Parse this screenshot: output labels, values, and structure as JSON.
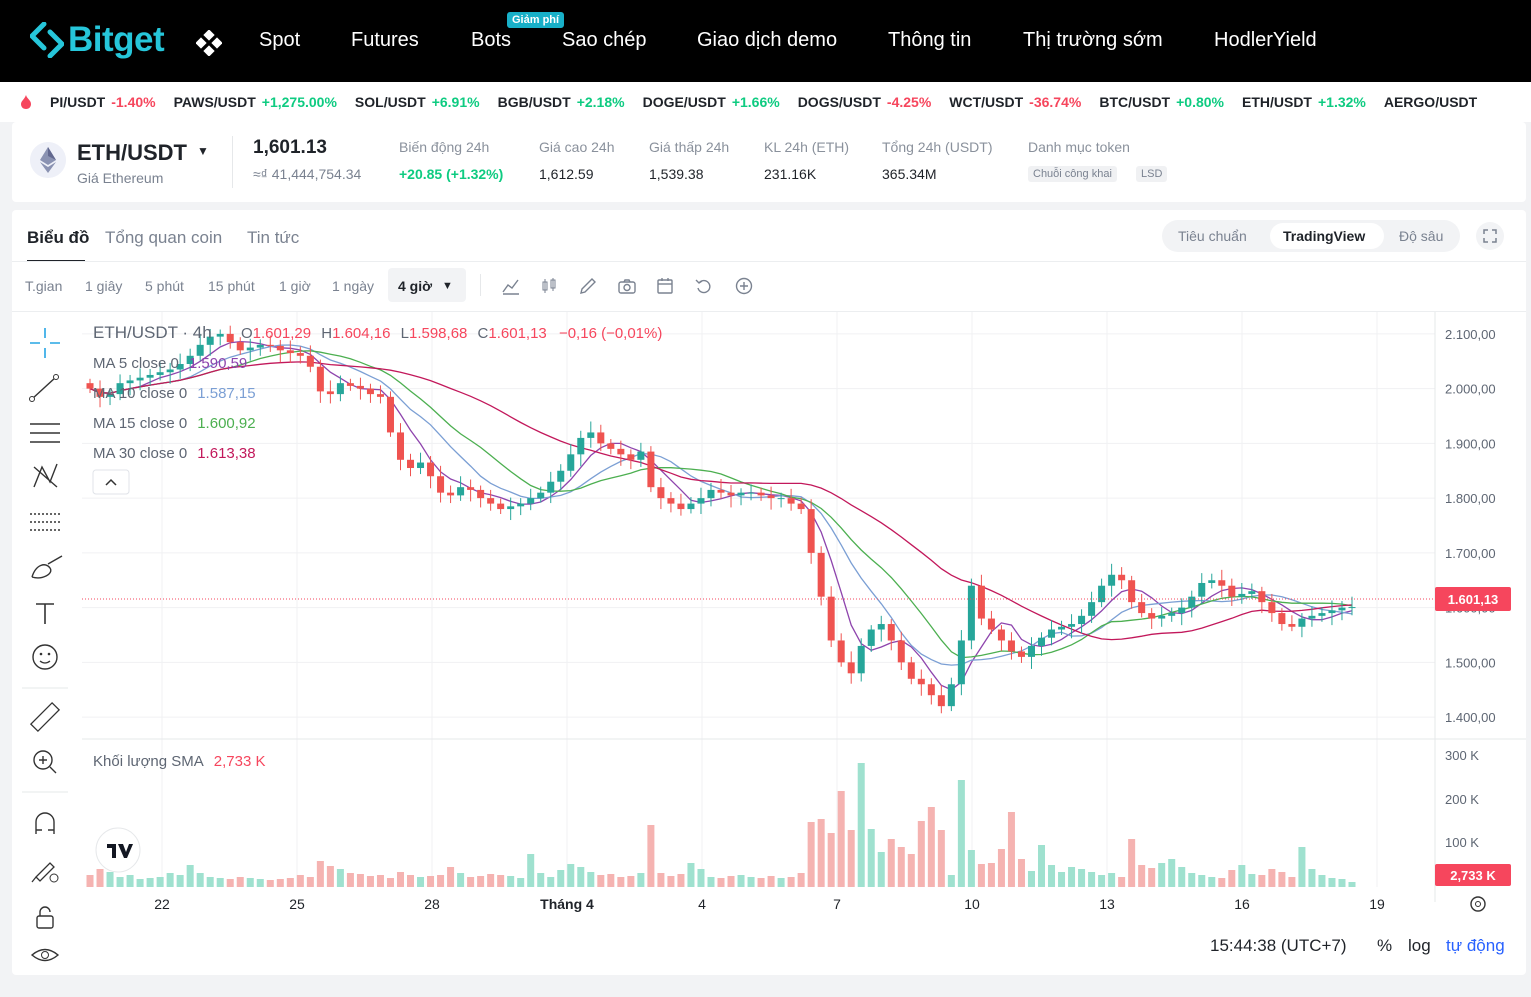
{
  "nav": {
    "brand": "Bitget",
    "items": [
      "Spot",
      "Futures",
      "Bots",
      "Sao chép",
      "Giao dịch demo",
      "Thông tin",
      "Thị trường sớm",
      "HodlerYield"
    ],
    "badge": "Giảm phí"
  },
  "ticker": [
    {
      "pair": "PI/USDT",
      "change": "-1.40%"
    },
    {
      "pair": "PAWS/USDT",
      "change": "+1,275.00%"
    },
    {
      "pair": "SOL/USDT",
      "change": "+6.91%"
    },
    {
      "pair": "BGB/USDT",
      "change": "+2.18%"
    },
    {
      "pair": "DOGE/USDT",
      "change": "+1.66%"
    },
    {
      "pair": "DOGS/USDT",
      "change": "-4.25%"
    },
    {
      "pair": "WCT/USDT",
      "change": "-36.74%"
    },
    {
      "pair": "BTC/USDT",
      "change": "+0.80%"
    },
    {
      "pair": "ETH/USDT",
      "change": "+1.32%"
    },
    {
      "pair": "AERGO/USDT",
      "change": ""
    }
  ],
  "info": {
    "pair": "ETH/USDT",
    "subtitle": "Giá Ethereum",
    "price": "1,601.13",
    "price_fiat": "≈₫ 41,444,754.34",
    "stats": [
      {
        "label": "Biến động 24h",
        "value": "+20.85 (+1.32%)"
      },
      {
        "label": "Giá cao 24h",
        "value": "1,612.59"
      },
      {
        "label": "Giá thấp 24h",
        "value": "1,539.38"
      },
      {
        "label": "KL 24h (ETH)",
        "value": "231.16K"
      },
      {
        "label": "Tổng 24h (USDT)",
        "value": "365.34M"
      }
    ],
    "category_label": "Danh mục token",
    "tags": [
      "Chuỗi công khai",
      "LSD"
    ]
  },
  "tabs": [
    "Biểu đồ",
    "Tổng quan coin",
    "Tin tức"
  ],
  "views": [
    "Tiêu chuẩn",
    "TradingView",
    "Độ sâu"
  ],
  "timeframes": [
    "T.gian",
    "1 giây",
    "5 phút",
    "15 phút",
    "1 giờ",
    "1 ngày",
    "4 giờ"
  ],
  "legend": {
    "title": "ETH/USDT · 4h",
    "ohlc": [
      {
        "k": "O",
        "v": "1.601,29"
      },
      {
        "k": "H",
        "v": "1.604,16"
      },
      {
        "k": "L",
        "v": "1.598,68"
      },
      {
        "k": "C",
        "v": "1.601,13"
      }
    ],
    "change": "−0,16 (−0,01%)",
    "ma": [
      {
        "label": "MA 5 close 0",
        "value": "1.590,59",
        "color": "#8e44ad"
      },
      {
        "label": "MA 10 close 0",
        "value": "1.587,15",
        "color": "#7b9fd4"
      },
      {
        "label": "MA 15 close 0",
        "value": "1.600,92",
        "color": "#4caf50"
      },
      {
        "label": "MA 30 close 0",
        "value": "1.613,38",
        "color": "#c2185b"
      }
    ],
    "volume_label": "Khối lượng SMA",
    "volume_value": "2,733 K"
  },
  "chart_data": {
    "type": "candlestick",
    "price_axis": [
      "2.100,00",
      "2.000,00",
      "1.900,00",
      "1.800,00",
      "1.700,00",
      "1.600,00",
      "1.500,00",
      "1.400,00"
    ],
    "price_range": [
      1360,
      2140
    ],
    "volume_axis": [
      "300 K",
      "200 K",
      "100 K"
    ],
    "x_labels": [
      "22",
      "25",
      "28",
      "Tháng 4",
      "4",
      "7",
      "10",
      "13",
      "16",
      "19"
    ],
    "last_price_label": "1.601,13",
    "last_volume_label": "2,733 K",
    "closes": [
      2000,
      1985,
      1990,
      2010,
      2015,
      2020,
      2025,
      2030,
      2035,
      2045,
      2060,
      2080,
      2095,
      2100,
      2085,
      2070,
      2075,
      2080,
      2078,
      2070,
      2065,
      2060,
      2040,
      1995,
      1990,
      2010,
      2005,
      2000,
      1990,
      1985,
      1920,
      1870,
      1855,
      1865,
      1840,
      1810,
      1805,
      1820,
      1815,
      1800,
      1790,
      1780,
      1785,
      1790,
      1800,
      1810,
      1830,
      1850,
      1880,
      1910,
      1920,
      1900,
      1890,
      1880,
      1870,
      1885,
      1820,
      1800,
      1790,
      1780,
      1790,
      1800,
      1815,
      1810,
      1805,
      1810,
      1810,
      1805,
      1800,
      1800,
      1790,
      1780,
      1700,
      1620,
      1540,
      1500,
      1480,
      1530,
      1560,
      1570,
      1540,
      1500,
      1470,
      1460,
      1440,
      1420,
      1460,
      1540,
      1640,
      1580,
      1560,
      1540,
      1520,
      1510,
      1530,
      1545,
      1560,
      1565,
      1570,
      1585,
      1610,
      1640,
      1660,
      1650,
      1610,
      1590,
      1580,
      1585,
      1590,
      1600,
      1620,
      1645,
      1650,
      1640,
      1620,
      1625,
      1630,
      1610,
      1590,
      1570,
      1565,
      1580,
      1585,
      1590,
      1595,
      1600,
      1601
    ],
    "volumes": [
      12,
      18,
      15,
      10,
      12,
      8,
      9,
      10,
      14,
      12,
      22,
      14,
      10,
      9,
      8,
      10,
      9,
      8,
      7,
      8,
      9,
      12,
      10,
      26,
      21,
      18,
      14,
      13,
      11,
      12,
      9,
      15,
      12,
      10,
      11,
      12,
      20,
      14,
      10,
      11,
      13,
      12,
      11,
      9,
      33,
      14,
      10,
      17,
      23,
      20,
      15,
      12,
      13,
      10,
      11,
      14,
      62,
      14,
      11,
      13,
      24,
      18,
      10,
      9,
      11,
      12,
      10,
      9,
      11,
      9,
      10,
      14,
      65,
      68,
      54,
      96,
      57,
      124,
      58,
      35,
      48,
      40,
      33,
      66,
      80,
      57,
      12,
      107,
      37,
      23,
      24,
      38,
      75,
      28,
      16,
      42,
      22,
      15,
      20,
      18,
      15,
      12,
      14,
      10,
      48,
      22,
      19,
      24,
      28,
      20,
      14,
      12,
      10,
      9,
      17,
      22,
      13,
      12,
      18,
      15,
      10,
      40,
      18,
      12,
      9,
      8,
      5
    ]
  }
}
